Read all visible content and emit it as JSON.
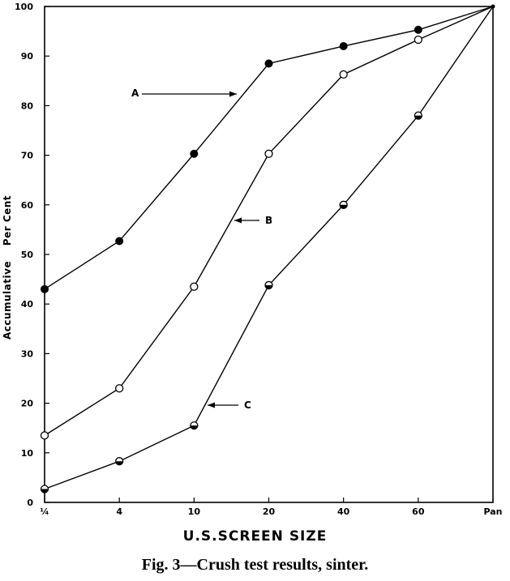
{
  "chart_data": {
    "type": "line",
    "title": "",
    "caption": "Fig. 3—Crush test results, sinter.",
    "xlabel": "U.S.SCREEN SIZE",
    "ylabel": "Accumulative    Per Cent",
    "categories": [
      "¼",
      "4",
      "10",
      "20",
      "40",
      "60",
      "Pan"
    ],
    "ylim": [
      0,
      100
    ],
    "yticks": [
      "0",
      "10",
      "20",
      "30",
      "40",
      "50",
      "60",
      "70",
      "80",
      "90",
      "100"
    ],
    "grid": false,
    "series": [
      {
        "name": "A",
        "marker": "filled-circle",
        "values": [
          43,
          52.7,
          70.3,
          88.5,
          92,
          95.3,
          100
        ]
      },
      {
        "name": "B",
        "marker": "open-circle",
        "values": [
          13.5,
          23,
          43.5,
          70.3,
          86.3,
          93.3,
          100
        ]
      },
      {
        "name": "C",
        "marker": "half-filled-circle",
        "values": [
          2.7,
          8.3,
          15.5,
          43.8,
          60,
          78,
          100
        ]
      }
    ],
    "annotations": [
      {
        "label": "A",
        "series": "A"
      },
      {
        "label": "B",
        "series": "B"
      },
      {
        "label": "C",
        "series": "C"
      }
    ]
  }
}
